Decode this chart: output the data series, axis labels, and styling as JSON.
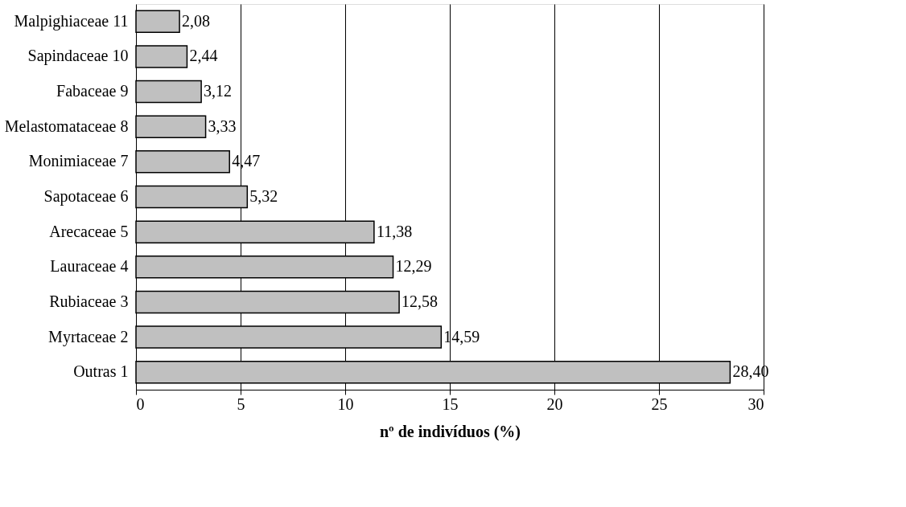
{
  "chart_data": {
    "type": "bar",
    "orientation": "horizontal",
    "categories": [
      "Malpighiaceae 11",
      "Sapindaceae 10",
      "Fabaceae 9",
      "Melastomataceae 8",
      "Monimiaceae 7",
      "Sapotaceae 6",
      "Arecaceae 5",
      "Lauraceae 4",
      "Rubiaceae 3",
      "Myrtaceae 2",
      "Outras 1"
    ],
    "values": [
      2.08,
      2.44,
      3.12,
      3.33,
      4.47,
      5.32,
      11.38,
      12.29,
      12.58,
      14.59,
      28.4
    ],
    "value_labels": [
      "2,08",
      "2,44",
      "3,12",
      "3,33",
      "4,47",
      "5,32",
      "11,38",
      "12,29",
      "12,58",
      "14,59",
      "28,40"
    ],
    "color": "#c0c0c0",
    "xlabel": "nº de indivíduos (%)",
    "xlim": [
      0,
      30
    ],
    "xticks": [
      0,
      5,
      10,
      15,
      20,
      25,
      30
    ],
    "grid": "x"
  }
}
